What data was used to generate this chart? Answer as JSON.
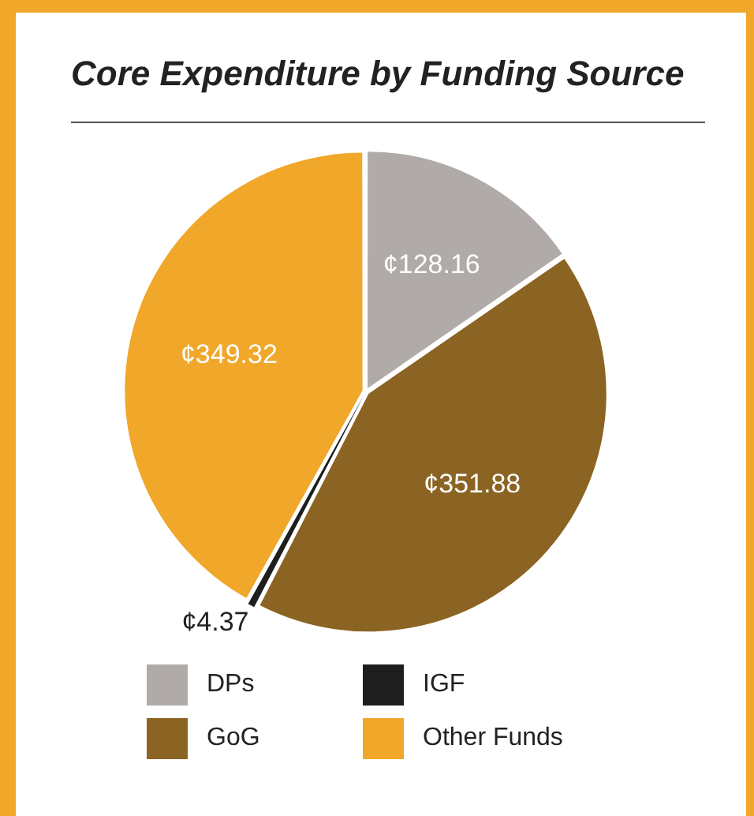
{
  "chart_data": {
    "type": "pie",
    "title": "Core Expenditure by Funding Source",
    "categories": [
      "DPs",
      "GoG",
      "IGF",
      "Other Funds"
    ],
    "values": [
      128.16,
      351.88,
      4.37,
      349.32
    ],
    "colors": [
      "#b0aaa8",
      "#8b6423",
      "#1e1e1e",
      "#f0a72a"
    ],
    "value_labels": [
      "¢128.16",
      "¢351.88",
      "¢4.37",
      "¢349.32"
    ],
    "legend": "bottom"
  }
}
